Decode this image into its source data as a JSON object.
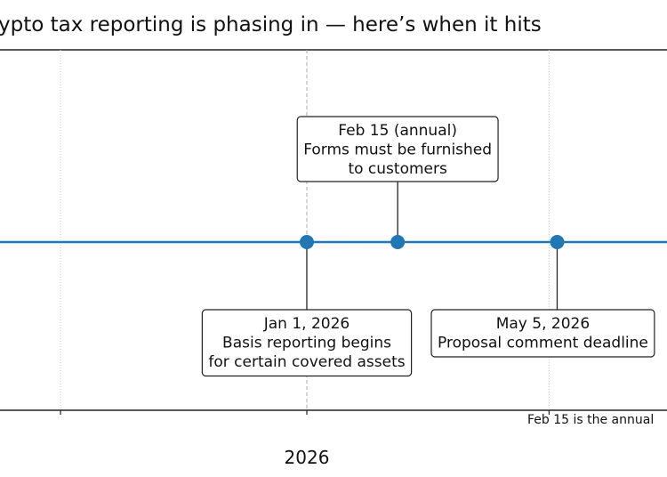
{
  "chart_data": {
    "type": "timeline",
    "title": "ypto tax reporting is phasing in — here’s when it hits",
    "x_ticks": [
      {
        "date": "2025-09-01",
        "label": ""
      },
      {
        "date": "2026-01-01",
        "label": "2026"
      },
      {
        "date": "2026-05-01",
        "label": ""
      }
    ],
    "grid": true,
    "line_color": "#1f77b4",
    "events": [
      {
        "date": "2026-01-01",
        "lines": [
          "Jan 1, 2026",
          "Basis reporting begins",
          "for certain covered assets"
        ],
        "position": "below"
      },
      {
        "date": "2026-02-15",
        "lines": [
          "Feb 15 (annual)",
          "Forms must be furnished",
          "to customers"
        ],
        "position": "above"
      },
      {
        "date": "2026-05-05",
        "lines": [
          "May 5, 2026",
          "Proposal comment deadline"
        ],
        "position": "below"
      }
    ],
    "footnote": "Feb 15 is the annual"
  }
}
